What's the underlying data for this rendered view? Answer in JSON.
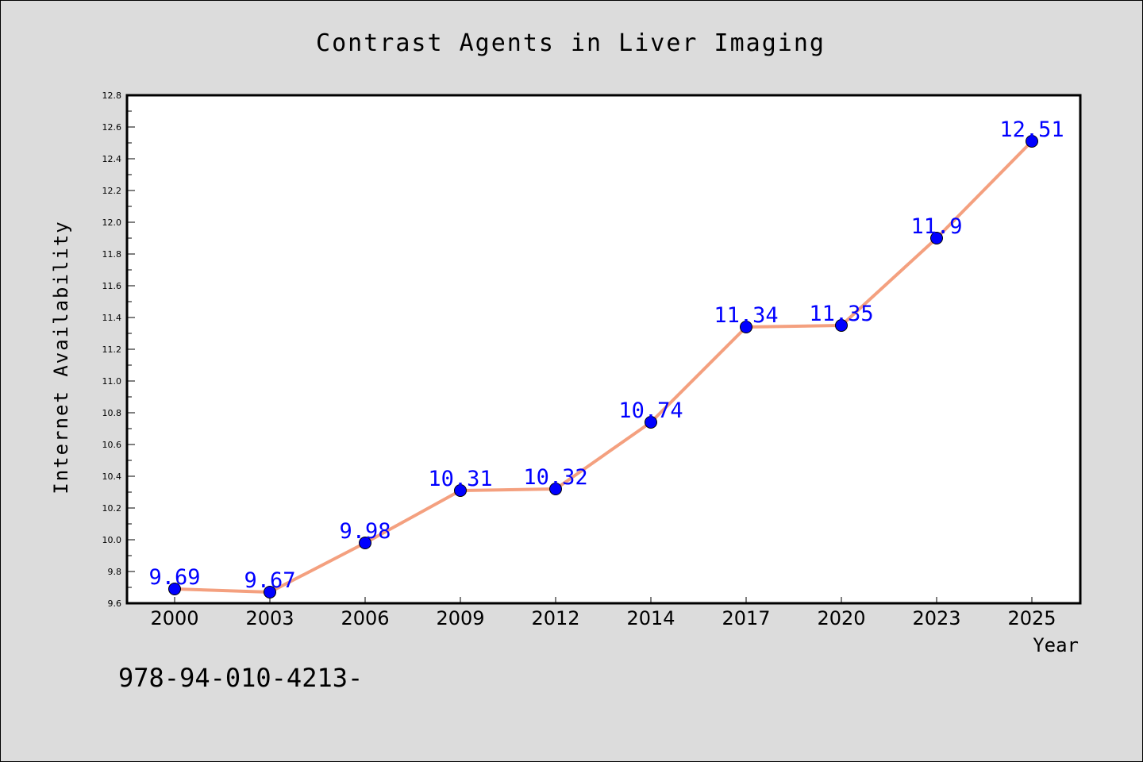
{
  "chart_data": {
    "type": "line",
    "title": "Contrast Agents in Liver Imaging",
    "xlabel": "Year",
    "ylabel": "Internet Availability",
    "categories": [
      "2000",
      "2003",
      "2006",
      "2009",
      "2012",
      "2014",
      "2017",
      "2020",
      "2023",
      "2025"
    ],
    "series": [
      {
        "values": [
          9.69,
          9.67,
          9.98,
          10.31,
          10.32,
          10.74,
          11.34,
          11.35,
          11.9,
          12.51
        ]
      }
    ],
    "data_labels": [
      "9.69",
      "9.67",
      "9.98",
      "10.31",
      "10.32",
      "10.74",
      "11.34",
      "11.35",
      "11.9",
      "12.51"
    ],
    "ylim": [
      9.6,
      12.8
    ],
    "y_ticks": [
      "9.6",
      "9.8",
      "10.0",
      "10.2",
      "10.4",
      "10.6",
      "10.8",
      "11.0",
      "11.2",
      "11.4",
      "11.6",
      "11.8",
      "12.0",
      "12.2",
      "12.4",
      "12.6",
      "12.8"
    ],
    "grid": false,
    "colors": {
      "line": "#f4a07f",
      "marker": "#0000ff",
      "label": "#0000ff",
      "background": "#dcdcdc",
      "plot_background": "#ffffff"
    }
  },
  "footer_text": "978-94-010-4213-"
}
